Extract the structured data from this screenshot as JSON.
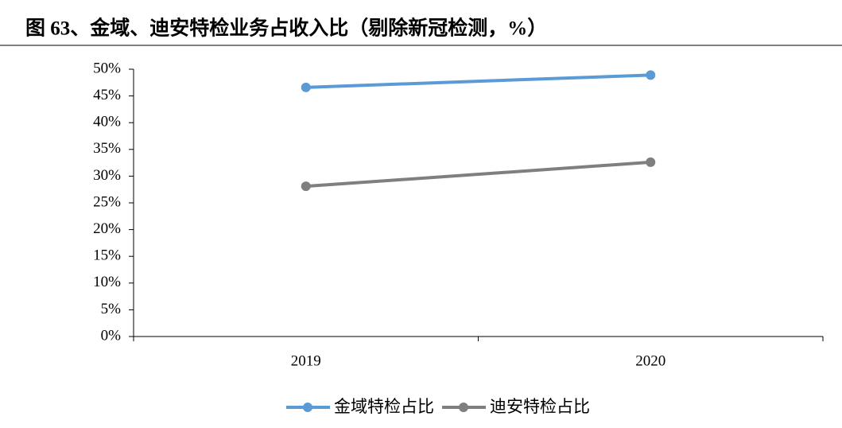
{
  "chart_data": {
    "type": "line",
    "title": "图 63、金域、迪安特检业务占收入比（剔除新冠检测，%）",
    "categories": [
      "2019",
      "2020"
    ],
    "series": [
      {
        "name": "金域特检占比",
        "color": "#5b9bd5",
        "values": [
          46.6,
          48.9
        ]
      },
      {
        "name": "迪安特检占比",
        "color": "#7f7f7f",
        "values": [
          28.1,
          32.6
        ]
      }
    ],
    "ylim": [
      0,
      50
    ],
    "yticks": [
      {
        "value": 0,
        "label": "0%"
      },
      {
        "value": 5,
        "label": "5%"
      },
      {
        "value": 10,
        "label": "10%"
      },
      {
        "value": 15,
        "label": "15%"
      },
      {
        "value": 20,
        "label": "20%"
      },
      {
        "value": 25,
        "label": "25%"
      },
      {
        "value": 30,
        "label": "30%"
      },
      {
        "value": 35,
        "label": "35%"
      },
      {
        "value": 40,
        "label": "40%"
      },
      {
        "value": 45,
        "label": "45%"
      },
      {
        "value": 50,
        "label": "50%"
      }
    ],
    "grid": false
  }
}
